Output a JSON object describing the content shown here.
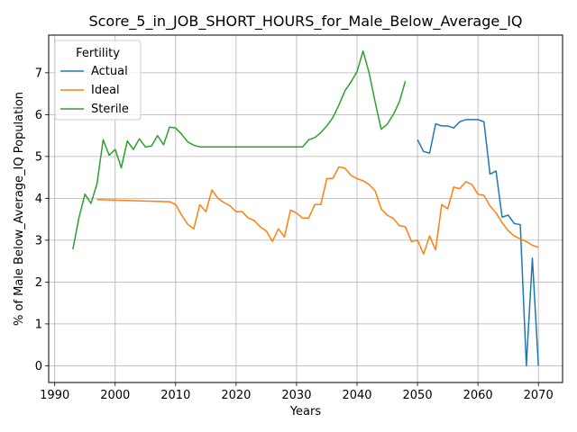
{
  "chart_data": {
    "type": "line",
    "title": "Score_5_in_JOB_SHORT_HOURS_for_Male_Below_Average_IQ",
    "xlabel": "Years",
    "ylabel": "% of Male Below_Average_IQ Population",
    "xlim": [
      1989,
      2074
    ],
    "ylim": [
      -0.4,
      7.9
    ],
    "xticks": [
      1990,
      2000,
      2010,
      2020,
      2030,
      2040,
      2050,
      2060,
      2070
    ],
    "yticks": [
      0,
      1,
      2,
      3,
      4,
      5,
      6,
      7
    ],
    "grid": true,
    "legend": {
      "title": "Fertility",
      "placement": "top-left"
    },
    "series": [
      {
        "name": "Actual",
        "color": "#1f77b4",
        "x": [
          2050,
          2051,
          2052,
          2053,
          2054,
          2055,
          2056,
          2057,
          2058,
          2059,
          2060,
          2061,
          2062,
          2063,
          2064,
          2065,
          2066,
          2067,
          2068,
          2069,
          2070
        ],
        "y": [
          5.4,
          5.12,
          5.08,
          5.78,
          5.73,
          5.73,
          5.68,
          5.83,
          5.88,
          5.88,
          5.88,
          5.83,
          4.58,
          4.65,
          3.55,
          3.6,
          3.4,
          3.37,
          0.0,
          2.57,
          0.0
        ]
      },
      {
        "name": "Ideal",
        "color": "#ff7f0e",
        "x": [
          1997,
          2009,
          2010,
          2011,
          2012,
          2013,
          2014,
          2015,
          2016,
          2017,
          2018,
          2019,
          2020,
          2021,
          2022,
          2023,
          2024,
          2025,
          2026,
          2027,
          2028,
          2029,
          2030,
          2031,
          2032,
          2033,
          2034,
          2035,
          2036,
          2037,
          2038,
          2039,
          2040,
          2041,
          2042,
          2043,
          2044,
          2045,
          2046,
          2047,
          2048,
          2049,
          2050,
          2051,
          2052,
          2053,
          2054,
          2055,
          2056,
          2057,
          2058,
          2059,
          2060,
          2061,
          2062,
          2063,
          2064,
          2065,
          2066,
          2067,
          2068,
          2069,
          2070
        ],
        "y": [
          3.97,
          3.92,
          3.85,
          3.6,
          3.38,
          3.27,
          3.85,
          3.68,
          4.2,
          4.0,
          3.9,
          3.82,
          3.68,
          3.68,
          3.53,
          3.47,
          3.32,
          3.22,
          2.97,
          3.27,
          3.08,
          3.72,
          3.65,
          3.53,
          3.53,
          3.85,
          3.85,
          4.47,
          4.48,
          4.75,
          4.72,
          4.55,
          4.47,
          4.42,
          4.33,
          4.18,
          3.75,
          3.6,
          3.52,
          3.35,
          3.32,
          2.97,
          3.0,
          2.67,
          3.1,
          2.77,
          3.85,
          3.75,
          4.27,
          4.23,
          4.4,
          4.33,
          4.1,
          4.07,
          3.82,
          3.65,
          3.42,
          3.23,
          3.1,
          3.03,
          2.97,
          2.88,
          2.83
        ]
      },
      {
        "name": "Sterile",
        "color": "#2ca02c",
        "x": [
          1993,
          1994,
          1995,
          1996,
          1997,
          1998,
          1999,
          2000,
          2001,
          2002,
          2003,
          2004,
          2005,
          2006,
          2007,
          2008,
          2009,
          2010,
          2011,
          2012,
          2013,
          2014,
          2015,
          2016,
          2017,
          2018,
          2019,
          2020,
          2021,
          2022,
          2023,
          2024,
          2025,
          2026,
          2027,
          2028,
          2029,
          2030,
          2031,
          2032,
          2033,
          2034,
          2035,
          2036,
          2037,
          2038,
          2039,
          2040,
          2041,
          2042,
          2043,
          2044,
          2045,
          2046,
          2047,
          2048
        ],
        "y": [
          2.78,
          3.53,
          4.1,
          3.88,
          4.35,
          5.4,
          5.03,
          5.17,
          4.73,
          5.37,
          5.17,
          5.42,
          5.23,
          5.25,
          5.5,
          5.28,
          5.7,
          5.68,
          5.53,
          5.35,
          5.27,
          5.23,
          5.23,
          5.23,
          5.23,
          5.23,
          5.23,
          5.23,
          5.23,
          5.23,
          5.23,
          5.23,
          5.23,
          5.23,
          5.23,
          5.23,
          5.23,
          5.23,
          5.23,
          5.4,
          5.45,
          5.57,
          5.73,
          5.93,
          6.23,
          6.57,
          6.78,
          7.03,
          7.52,
          7.0,
          6.3,
          5.65,
          5.77,
          6.0,
          6.3,
          6.8
        ]
      }
    ]
  }
}
